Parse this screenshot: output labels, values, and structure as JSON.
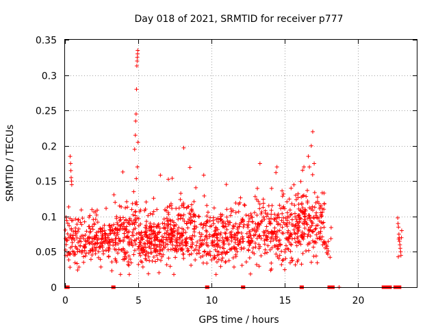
{
  "chart_data": {
    "type": "scatter",
    "title": "Day 018 of 2021, SRMTID for receiver p777",
    "xlabel": "GPS time / hours",
    "ylabel": "SRMTID / TECUs",
    "xlim": [
      0,
      24
    ],
    "ylim": [
      0,
      0.35
    ],
    "x_ticks": [
      0,
      5,
      10,
      15,
      20
    ],
    "x_tick_labels": [
      "0",
      "5",
      "10",
      "15",
      "20"
    ],
    "y_ticks": [
      0,
      0.05,
      0.1,
      0.15,
      0.2,
      0.25,
      0.3,
      0.35
    ],
    "y_tick_labels": [
      "0",
      "0.05",
      "0.1",
      "0.15",
      "0.2",
      "0.25",
      "0.3",
      "0.35"
    ],
    "grid": true,
    "marker": "+",
    "color": "#ff0000",
    "data_ranges": [
      {
        "from": 0.0,
        "to": 3.3,
        "n": 230,
        "base": 0.065,
        "spread": 0.04
      },
      {
        "from": 3.3,
        "to": 4.6,
        "n": 110,
        "base": 0.07,
        "spread": 0.045
      },
      {
        "from": 4.6,
        "to": 5.0,
        "n": 30,
        "base": 0.09,
        "spread": 0.06
      },
      {
        "from": 5.0,
        "to": 6.8,
        "n": 170,
        "base": 0.065,
        "spread": 0.04
      },
      {
        "from": 6.8,
        "to": 9.0,
        "n": 200,
        "base": 0.075,
        "spread": 0.05
      },
      {
        "from": 9.0,
        "to": 12.0,
        "n": 220,
        "base": 0.07,
        "spread": 0.045
      },
      {
        "from": 12.0,
        "to": 15.5,
        "n": 260,
        "base": 0.075,
        "spread": 0.05
      },
      {
        "from": 15.5,
        "to": 17.7,
        "n": 190,
        "base": 0.085,
        "spread": 0.05
      },
      {
        "from": 17.7,
        "to": 18.2,
        "n": 12,
        "base": 0.05,
        "spread": 0.02
      }
    ],
    "highlight_points": [
      {
        "x": 0.35,
        "y": 0.185
      },
      {
        "x": 0.38,
        "y": 0.175
      },
      {
        "x": 0.4,
        "y": 0.165
      },
      {
        "x": 0.42,
        "y": 0.155
      },
      {
        "x": 0.44,
        "y": 0.15
      },
      {
        "x": 0.46,
        "y": 0.145
      },
      {
        "x": 4.75,
        "y": 0.195
      },
      {
        "x": 4.8,
        "y": 0.215
      },
      {
        "x": 4.82,
        "y": 0.235
      },
      {
        "x": 4.85,
        "y": 0.245
      },
      {
        "x": 4.88,
        "y": 0.28
      },
      {
        "x": 4.9,
        "y": 0.313
      },
      {
        "x": 4.92,
        "y": 0.32
      },
      {
        "x": 4.93,
        "y": 0.325
      },
      {
        "x": 4.95,
        "y": 0.33
      },
      {
        "x": 4.96,
        "y": 0.335
      },
      {
        "x": 4.98,
        "y": 0.205
      },
      {
        "x": 8.1,
        "y": 0.197
      },
      {
        "x": 16.9,
        "y": 0.22
      },
      {
        "x": 16.8,
        "y": 0.2
      },
      {
        "x": 17.0,
        "y": 0.175
      },
      {
        "x": 16.6,
        "y": 0.185
      },
      {
        "x": 13.3,
        "y": 0.175
      },
      {
        "x": 16.3,
        "y": 0.17
      },
      {
        "x": 18.7,
        "y": 0.0
      },
      {
        "x": 22.7,
        "y": 0.098
      },
      {
        "x": 22.72,
        "y": 0.09
      },
      {
        "x": 22.75,
        "y": 0.085
      },
      {
        "x": 22.78,
        "y": 0.075
      },
      {
        "x": 22.8,
        "y": 0.07
      },
      {
        "x": 22.82,
        "y": 0.065
      },
      {
        "x": 22.85,
        "y": 0.06
      },
      {
        "x": 22.87,
        "y": 0.055
      },
      {
        "x": 22.9,
        "y": 0.05
      },
      {
        "x": 22.92,
        "y": 0.045
      },
      {
        "x": 22.95,
        "y": 0.07
      },
      {
        "x": 22.97,
        "y": 0.08
      },
      {
        "x": 22.74,
        "y": 0.043
      },
      {
        "x": 22.77,
        "y": 0.068
      }
    ],
    "zero_marker_ranges": [
      [
        0.05,
        0.22
      ],
      [
        3.25,
        3.35
      ],
      [
        9.65,
        9.75
      ],
      [
        12.1,
        12.2
      ],
      [
        16.1,
        16.2
      ],
      [
        18.0,
        18.3
      ],
      [
        21.7,
        22.2
      ],
      [
        22.5,
        22.85
      ]
    ]
  }
}
